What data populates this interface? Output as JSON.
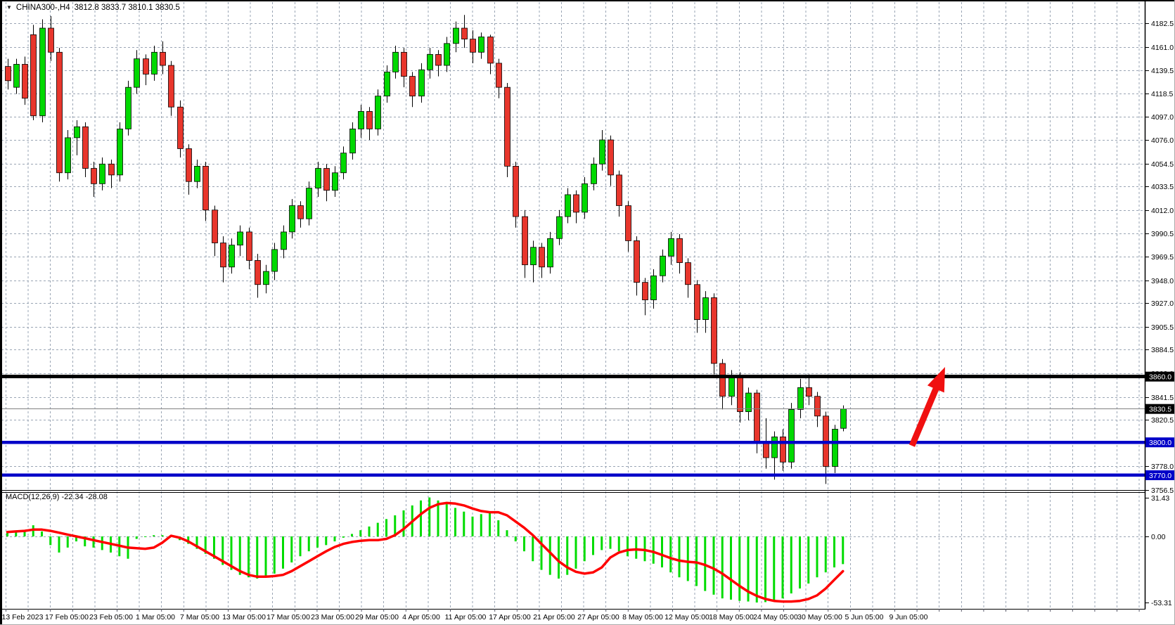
{
  "window": {
    "dropdown_icon": "▼",
    "symbol_period": "CHINA300-,H4",
    "ohlc_line": "3812.8 3833.7 3810.1 3830.5"
  },
  "price_axis": {
    "labels": [
      "4182.5",
      "4161.0",
      "4139.5",
      "4118.5",
      "4097.0",
      "4076.0",
      "4054.5",
      "4033.5",
      "4012.0",
      "3990.5",
      "3969.5",
      "3948.0",
      "3927.0",
      "3905.5",
      "3884.5",
      "3863.0",
      "3841.5",
      "3820.5",
      "3778.0",
      "3756.5"
    ],
    "badges": [
      {
        "text": "3860.0",
        "price": 3860.0,
        "bg": "black"
      },
      {
        "text": "3830.5",
        "price": 3830.5,
        "bg": "black"
      },
      {
        "text": "3800.0",
        "price": 3800.0,
        "bg": "blue"
      },
      {
        "text": "3770.0",
        "price": 3770.0,
        "bg": "blue"
      }
    ]
  },
  "time_axis": {
    "labels": [
      "13 Feb 2023",
      "17 Feb 05:00",
      "23 Feb 05:00",
      "1 Mar 05:00",
      "7 Mar 05:00",
      "13 Mar 05:00",
      "17 Mar 05:00",
      "23 Mar 05:00",
      "29 Mar 05:00",
      "4 Apr 05:00",
      "11 Apr 05:00",
      "17 Apr 05:00",
      "21 Apr 05:00",
      "27 Apr 05:00",
      "8 May 05:00",
      "12 May 05:00",
      "18 May 05:00",
      "24 May 05:00",
      "30 May 05:00",
      "5 Jun 05:00",
      "9 Jun 05:00"
    ]
  },
  "macd_panel": {
    "label": "MACD(12,26,9) -22.34 -28.08",
    "axis_labels": [
      "31.43",
      "0.00",
      "-53.31"
    ]
  },
  "colors": {
    "bull": "#00d900",
    "bear": "#e8362c",
    "wick": "#000000",
    "grid": "#9aa5b4",
    "hline_black": "#000000",
    "hline_blue": "#0000c8",
    "current_price": "#808080",
    "macd_hist": "#00dc00",
    "macd_signal": "#ff0000",
    "arrow": "#f01010",
    "badge_black_bg": "#000000",
    "badge_blue_bg": "#0000c8",
    "badge_text": "#ffffff",
    "axis_text": "#000000"
  },
  "chart_data": {
    "type": "candlestick+macd",
    "symbol": "CHINA300",
    "timeframe": "H4",
    "last_bar": {
      "open": 3812.8,
      "high": 3833.7,
      "low": 3810.1,
      "close": 3830.5
    },
    "price_range": {
      "top": 4182.5,
      "bottom": 3756.5
    },
    "macd_range": {
      "top": 31.43,
      "zero": 0.0,
      "bottom": -53.31
    },
    "macd_values": {
      "macd": -22.34,
      "signal": -28.08
    },
    "hlines": [
      {
        "price": 3860.0,
        "color": "#000000",
        "width": 5
      },
      {
        "price": 3830.5,
        "color": "#808080",
        "width": 1
      },
      {
        "price": 3800.0,
        "color": "#0000c8",
        "width": 4.5
      },
      {
        "price": 3770.0,
        "color": "#0000c8",
        "width": 4.5
      }
    ],
    "arrow": {
      "tail": [
        1297,
        634
      ],
      "tip": [
        1344,
        522
      ]
    },
    "candles": [
      [
        4143,
        4150,
        4122,
        4130
      ],
      [
        4124,
        4150,
        4118,
        4145
      ],
      [
        4145,
        4152,
        4108,
        4114
      ],
      [
        4172,
        4181,
        4094,
        4098
      ],
      [
        4098,
        4186,
        4092,
        4178
      ],
      [
        4178,
        4189,
        4148,
        4156
      ],
      [
        4156,
        4160,
        4038,
        4046
      ],
      [
        4046,
        4085,
        4040,
        4078
      ],
      [
        4078,
        4094,
        4062,
        4088
      ],
      [
        4088,
        4092,
        4042,
        4050
      ],
      [
        4050,
        4056,
        4024,
        4036
      ],
      [
        4036,
        4060,
        4030,
        4054
      ],
      [
        4054,
        4058,
        4032,
        4044
      ],
      [
        4044,
        4092,
        4038,
        4086
      ],
      [
        4086,
        4130,
        4080,
        4124
      ],
      [
        4124,
        4158,
        4118,
        4150
      ],
      [
        4150,
        4154,
        4126,
        4136
      ],
      [
        4136,
        4162,
        4130,
        4156
      ],
      [
        4156,
        4166,
        4136,
        4144
      ],
      [
        4144,
        4148,
        4098,
        4106
      ],
      [
        4106,
        4112,
        4060,
        4068
      ],
      [
        4068,
        4072,
        4026,
        4038
      ],
      [
        4038,
        4058,
        4032,
        4052
      ],
      [
        4052,
        4056,
        4002,
        4012
      ],
      [
        4012,
        4016,
        3970,
        3982
      ],
      [
        3982,
        3988,
        3946,
        3960
      ],
      [
        3960,
        3986,
        3954,
        3980
      ],
      [
        3980,
        3998,
        3970,
        3992
      ],
      [
        3992,
        3996,
        3958,
        3966
      ],
      [
        3966,
        3972,
        3932,
        3944
      ],
      [
        3944,
        3962,
        3936,
        3956
      ],
      [
        3956,
        3982,
        3948,
        3976
      ],
      [
        3976,
        3998,
        3968,
        3992
      ],
      [
        3992,
        4022,
        3986,
        4016
      ],
      [
        4016,
        4020,
        3996,
        4004
      ],
      [
        4004,
        4038,
        3998,
        4032
      ],
      [
        4032,
        4056,
        4024,
        4050
      ],
      [
        4050,
        4054,
        4020,
        4030
      ],
      [
        4030,
        4052,
        4024,
        4046
      ],
      [
        4046,
        4070,
        4040,
        4064
      ],
      [
        4064,
        4092,
        4058,
        4086
      ],
      [
        4086,
        4108,
        4078,
        4102
      ],
      [
        4102,
        4106,
        4076,
        4086
      ],
      [
        4086,
        4122,
        4080,
        4116
      ],
      [
        4116,
        4144,
        4110,
        4138
      ],
      [
        4138,
        4162,
        4132,
        4156
      ],
      [
        4156,
        4160,
        4124,
        4134
      ],
      [
        4134,
        4138,
        4106,
        4116
      ],
      [
        4116,
        4146,
        4110,
        4140
      ],
      [
        4140,
        4160,
        4132,
        4154
      ],
      [
        4154,
        4158,
        4134,
        4144
      ],
      [
        4144,
        4170,
        4138,
        4164
      ],
      [
        4164,
        4184,
        4156,
        4178
      ],
      [
        4178,
        4190,
        4160,
        4168
      ],
      [
        4168,
        4176,
        4146,
        4156
      ],
      [
        4156,
        4174,
        4150,
        4170
      ],
      [
        4170,
        4172,
        4136,
        4146
      ],
      [
        4146,
        4150,
        4114,
        4124
      ],
      [
        4124,
        4128,
        4042,
        4052
      ],
      [
        4052,
        4056,
        3996,
        4006
      ],
      [
        4006,
        4012,
        3950,
        3962
      ],
      [
        3962,
        3984,
        3946,
        3978
      ],
      [
        3978,
        3982,
        3950,
        3960
      ],
      [
        3960,
        3992,
        3954,
        3986
      ],
      [
        3986,
        4012,
        3980,
        4006
      ],
      [
        4006,
        4032,
        4000,
        4026
      ],
      [
        4026,
        4030,
        4000,
        4010
      ],
      [
        4010,
        4042,
        4004,
        4036
      ],
      [
        4036,
        4060,
        4030,
        4054
      ],
      [
        4054,
        4085,
        4048,
        4076
      ],
      [
        4076,
        4080,
        4034,
        4044
      ],
      [
        4044,
        4048,
        4006,
        4016
      ],
      [
        4016,
        4020,
        3974,
        3984
      ],
      [
        3984,
        3988,
        3934,
        3946
      ],
      [
        3946,
        3950,
        3916,
        3930
      ],
      [
        3930,
        3958,
        3922,
        3952
      ],
      [
        3952,
        3976,
        3946,
        3970
      ],
      [
        3970,
        3992,
        3962,
        3986
      ],
      [
        3986,
        3990,
        3954,
        3964
      ],
      [
        3964,
        3968,
        3932,
        3944
      ],
      [
        3944,
        3948,
        3900,
        3912
      ],
      [
        3912,
        3938,
        3900,
        3932
      ],
      [
        3932,
        3936,
        3862,
        3872
      ],
      [
        3872,
        3876,
        3830,
        3842
      ],
      [
        3842,
        3866,
        3834,
        3860
      ],
      [
        3860,
        3864,
        3818,
        3828
      ],
      [
        3828,
        3850,
        3820,
        3845
      ],
      [
        3845,
        3848,
        3790,
        3800
      ],
      [
        3800,
        3822,
        3776,
        3786
      ],
      [
        3786,
        3810,
        3766,
        3805
      ],
      [
        3805,
        3812,
        3774,
        3782
      ],
      [
        3782,
        3836,
        3776,
        3830
      ],
      [
        3830,
        3858,
        3822,
        3850
      ],
      [
        3850,
        3862,
        3834,
        3842
      ],
      [
        3842,
        3846,
        3814,
        3824
      ],
      [
        3824,
        3828,
        3762,
        3778
      ],
      [
        3778,
        3816,
        3772,
        3812
      ],
      [
        3812.8,
        3833.7,
        3810.1,
        3830.5
      ]
    ],
    "macd_hist": [
      3,
      4,
      5,
      9,
      4,
      -7,
      -13,
      -9,
      -4,
      -8,
      -9,
      -11,
      -13,
      -16,
      -18,
      -2,
      0,
      1,
      1,
      0,
      -3,
      -6,
      -10,
      -14,
      -18,
      -23,
      -27,
      -31,
      -33,
      -34,
      -33,
      -30,
      -26,
      -21,
      -16,
      -12,
      -9,
      -7,
      -4,
      -1,
      2,
      5,
      8,
      11,
      14,
      17,
      21,
      25,
      29,
      31.43,
      29,
      26,
      23,
      20,
      16,
      18,
      19,
      13,
      5,
      -4,
      -12,
      -20,
      -27,
      -31,
      -34,
      -31,
      -26,
      -20,
      -15,
      -11,
      -10,
      -12,
      -16,
      -18,
      -20,
      -22,
      -25,
      -29,
      -33,
      -36,
      -40,
      -44,
      -47,
      -50,
      -51,
      -52,
      -52.5,
      -53.31,
      -53,
      -52,
      -50,
      -46,
      -42,
      -38,
      -33,
      -29,
      -25,
      -22.34
    ],
    "macd_signal": [
      3.5,
      4,
      4.5,
      5.5,
      5.5,
      4.5,
      3,
      1.5,
      0,
      -1.5,
      -3,
      -4.5,
      -6,
      -7.5,
      -9,
      -9.5,
      -10,
      -9,
      -5,
      0.5,
      -1,
      -4,
      -8,
      -12,
      -16,
      -20,
      -24,
      -28,
      -31,
      -32.5,
      -32.5,
      -32,
      -31,
      -28,
      -24,
      -20,
      -16,
      -12,
      -8.5,
      -6,
      -4.5,
      -3.5,
      -3,
      -3,
      -2,
      1,
      6,
      12,
      18,
      23,
      26,
      27,
      26.5,
      25,
      22.5,
      20.5,
      19.5,
      19.5,
      17,
      12,
      7,
      1,
      -6,
      -13,
      -20,
      -25,
      -28.5,
      -30,
      -29,
      -25,
      -17,
      -13,
      -11,
      -10.5,
      -11,
      -12.5,
      -15,
      -17.5,
      -19.5,
      -20.5,
      -21,
      -23,
      -26,
      -30,
      -35,
      -40,
      -44.5,
      -48,
      -50.5,
      -52,
      -52.5,
      -52.5,
      -52,
      -50.5,
      -47.5,
      -42,
      -35,
      -28.08
    ]
  }
}
